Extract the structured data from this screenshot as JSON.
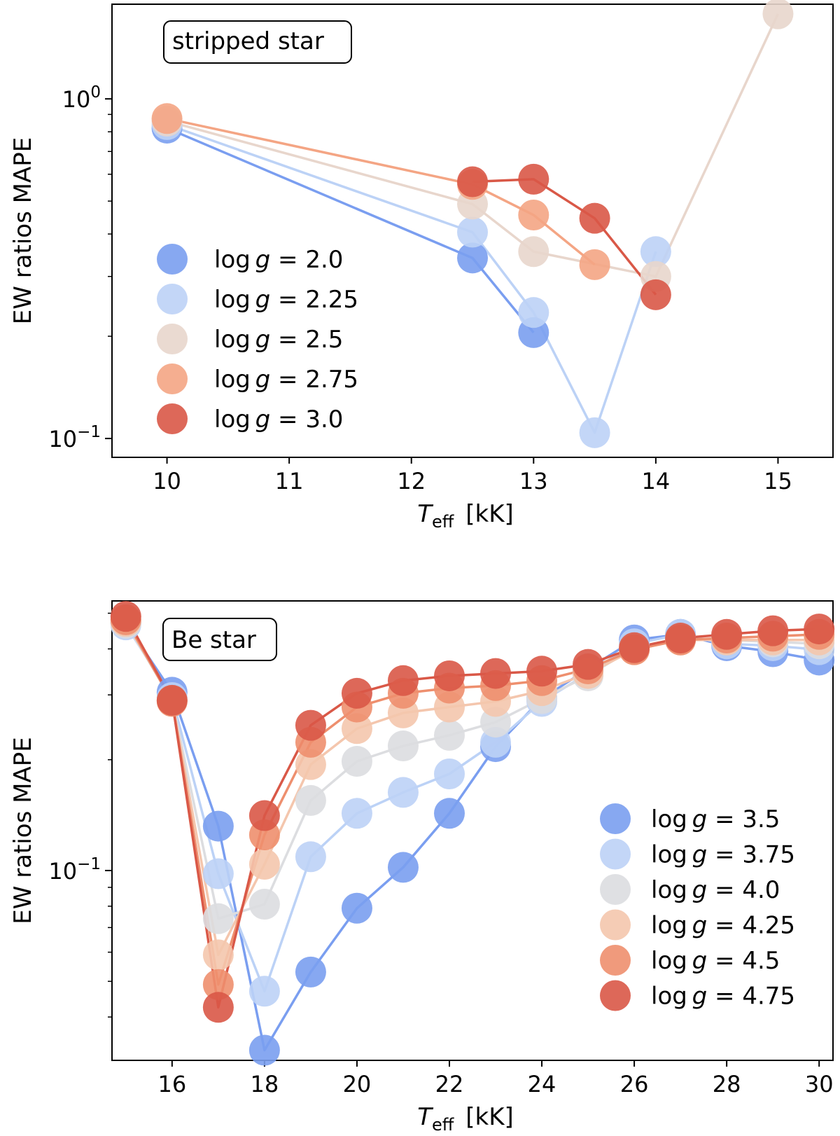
{
  "chart_data": [
    {
      "type": "line",
      "annotation": "stripped star",
      "xlabel": "T_eff [kK]",
      "xlabel_main": "T",
      "xlabel_sub": "eff",
      "xlabel_unit": "[kK]",
      "ylabel": "EW ratios MAPE",
      "xscale": "linear",
      "yscale": "log",
      "xlim": [
        9.55,
        15.45
      ],
      "ylim": [
        0.088,
        1.9
      ],
      "xticks": [
        10,
        11,
        12,
        13,
        14,
        15
      ],
      "xtick_labels": [
        "10",
        "11",
        "12",
        "13",
        "14",
        "15"
      ],
      "yticks_major": [
        0.1,
        1.0
      ],
      "ytick_major_labels": [
        {
          "base": "10",
          "exp": "−1"
        },
        {
          "base": "10",
          "exp": "0"
        }
      ],
      "yticks_minor": [
        0.2,
        0.3,
        0.4,
        0.5,
        0.6,
        0.7,
        0.8,
        0.9
      ],
      "legend_loc": "center-left",
      "series": [
        {
          "name": "log g =  2.0",
          "color": "#7a9ef0",
          "x": [
            10,
            12.5,
            13
          ],
          "y": [
            0.82,
            0.34,
            0.205
          ]
        },
        {
          "name": "log g =  2.25",
          "color": "#bcd2f6",
          "x": [
            10,
            12.5,
            13,
            13.5,
            14
          ],
          "y": [
            0.84,
            0.405,
            0.235,
            0.104,
            0.355
          ]
        },
        {
          "name": "log g =  2.5",
          "color": "#e8d6cc",
          "x": [
            10,
            12.5,
            13,
            14,
            15
          ],
          "y": [
            0.86,
            0.49,
            0.355,
            0.3,
            1.78
          ]
        },
        {
          "name": "log g =  2.75",
          "color": "#f4a584",
          "x": [
            10,
            12.5,
            13,
            13.5
          ],
          "y": [
            0.875,
            0.56,
            0.455,
            0.325
          ]
        },
        {
          "name": "log g =  3.0",
          "color": "#d95847",
          "x": [
            12.5,
            13,
            13.5,
            14
          ],
          "y": [
            0.57,
            0.58,
            0.445,
            0.265
          ]
        }
      ]
    },
    {
      "type": "line",
      "annotation": "Be star",
      "xlabel": "T_eff [kK]",
      "xlabel_main": "T",
      "xlabel_sub": "eff",
      "xlabel_unit": "[kK]",
      "ylabel": "EW ratios MAPE",
      "xscale": "linear",
      "yscale": "log",
      "xlim": [
        14.7,
        30.3
      ],
      "ylim": [
        0.0305,
        0.54
      ],
      "xticks": [
        16,
        18,
        20,
        22,
        24,
        26,
        28,
        30
      ],
      "xtick_labels": [
        "16",
        "18",
        "20",
        "22",
        "24",
        "26",
        "28",
        "30"
      ],
      "yticks_major": [
        0.1
      ],
      "ytick_major_labels": [
        {
          "base": "10",
          "exp": "−1"
        }
      ],
      "yticks_minor": [
        0.04,
        0.05,
        0.06,
        0.07,
        0.08,
        0.09,
        0.2,
        0.3,
        0.4,
        0.5
      ],
      "legend_loc": "lower-right",
      "series": [
        {
          "name": "log g =  3.5",
          "color": "#7a9ef0",
          "x": [
            15,
            16,
            17,
            18,
            19,
            20,
            21,
            22,
            23,
            24,
            25,
            26,
            27,
            28,
            29,
            30
          ],
          "y": [
            0.47,
            0.305,
            0.132,
            0.0325,
            0.053,
            0.079,
            0.102,
            0.143,
            0.217,
            0.293,
            0.353,
            0.423,
            0.438,
            0.408,
            0.393,
            0.373
          ]
        },
        {
          "name": "log g =  3.75",
          "color": "#bcd2f6",
          "x": [
            15,
            16,
            17,
            18,
            19,
            20,
            21,
            22,
            23,
            24,
            25,
            26,
            27,
            28,
            29,
            30
          ],
          "y": [
            0.465,
            0.295,
            0.098,
            0.047,
            0.109,
            0.143,
            0.163,
            0.183,
            0.223,
            0.288,
            0.343,
            0.413,
            0.438,
            0.413,
            0.408,
            0.398
          ]
        },
        {
          "name": "log g =  4.0",
          "color": "#dcdde0",
          "x": [
            15,
            16,
            17,
            18,
            19,
            20,
            21,
            22,
            23,
            24,
            25,
            26,
            27,
            28,
            29,
            30
          ],
          "y": [
            0.47,
            0.29,
            0.074,
            0.081,
            0.155,
            0.198,
            0.218,
            0.233,
            0.253,
            0.293,
            0.338,
            0.403,
            0.428,
            0.423,
            0.418,
            0.413
          ]
        },
        {
          "name": "log g =  4.25",
          "color": "#f4c6ad",
          "x": [
            15,
            16,
            17,
            18,
            19,
            20,
            21,
            22,
            23,
            24,
            25,
            26,
            27,
            28,
            29,
            30
          ],
          "y": [
            0.475,
            0.29,
            0.059,
            0.104,
            0.194,
            0.243,
            0.268,
            0.278,
            0.288,
            0.308,
            0.343,
            0.398,
            0.423,
            0.423,
            0.423,
            0.423
          ]
        },
        {
          "name": "log g =  4.5",
          "color": "#ee8f6e",
          "x": [
            15,
            16,
            17,
            18,
            19,
            20,
            21,
            22,
            23,
            24,
            25,
            26,
            27,
            28,
            29,
            30
          ],
          "y": [
            0.48,
            0.288,
            0.049,
            0.125,
            0.223,
            0.278,
            0.303,
            0.313,
            0.318,
            0.328,
            0.353,
            0.398,
            0.423,
            0.428,
            0.433,
            0.438
          ]
        },
        {
          "name": "log g =  4.75",
          "color": "#d95847",
          "x": [
            15,
            16,
            17,
            18,
            19,
            20,
            21,
            22,
            23,
            24,
            25,
            26,
            27,
            28,
            29,
            30
          ],
          "y": [
            0.49,
            0.29,
            0.0425,
            0.141,
            0.248,
            0.303,
            0.328,
            0.338,
            0.343,
            0.348,
            0.363,
            0.403,
            0.428,
            0.438,
            0.448,
            0.453
          ]
        }
      ]
    }
  ]
}
